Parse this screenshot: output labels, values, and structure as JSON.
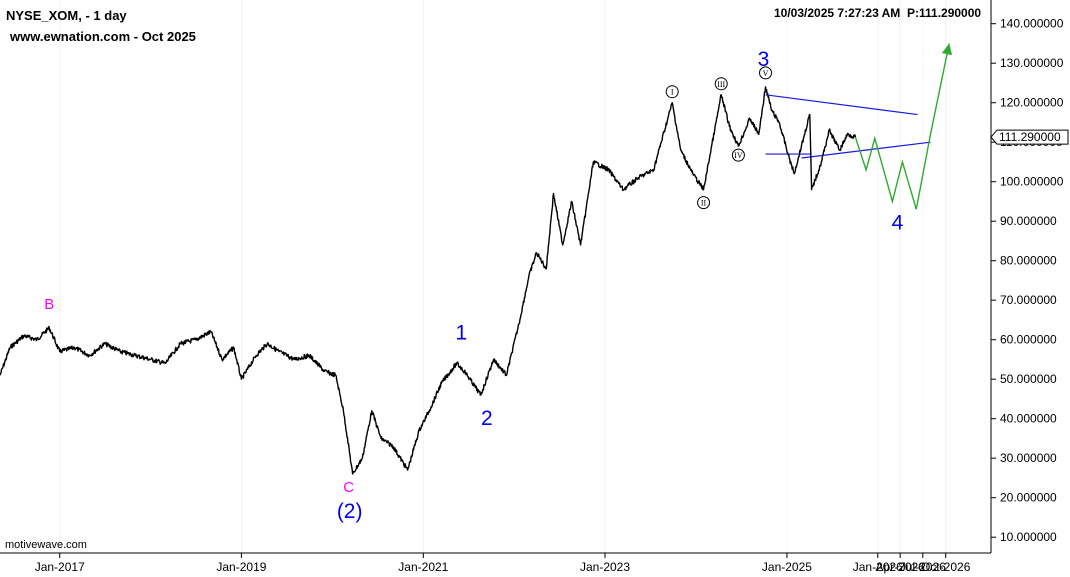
{
  "header": {
    "symbol": "NYSE_XOM, - 1 day",
    "site": "www.ewnation.com  - Oct 2025",
    "timestamp": "10/03/2025 7:27:23 AM",
    "price_readout": "P:111.290000"
  },
  "watermark": "motivewave.com",
  "colors": {
    "price": "#000000",
    "wave_blue": "#0000ee",
    "wave_magenta": "#ff00ff",
    "projection": "#2eaa2e",
    "triangle": "#1a1ae6"
  },
  "chart_data": {
    "type": "line",
    "title": "",
    "xlabel": "",
    "ylabel": "",
    "ylim": [
      6,
      146
    ],
    "xlim": [
      "2016-05-06",
      "2027-04-01"
    ],
    "y_ticks": [
      "10.000000",
      "20.000000",
      "30.000000",
      "40.000000",
      "50.000000",
      "60.000000",
      "70.000000",
      "80.000000",
      "90.000000",
      "100.000000",
      "110.000000",
      "120.000000",
      "130.000000",
      "140.000000"
    ],
    "x_ticks": [
      {
        "label": "Jan-2017",
        "date": "2017-01-01"
      },
      {
        "label": "Jan-2019",
        "date": "2019-01-01"
      },
      {
        "label": "Jan-2021",
        "date": "2021-01-01"
      },
      {
        "label": "Jan-2023",
        "date": "2023-01-01"
      },
      {
        "label": "Jan-2025",
        "date": "2025-01-01"
      },
      {
        "label": "Jan-2026",
        "date": "2026-01-01"
      },
      {
        "label": "Apr-2026",
        "date": "2026-04-01"
      },
      {
        "label": "Jul-2026",
        "date": "2026-07-01"
      },
      {
        "label": "Oct-2026",
        "date": "2026-10-01"
      }
    ],
    "current_price": "111.290000",
    "current_value": 111.29,
    "series": [
      {
        "points": [
          [
            "2016-05-06",
            51
          ],
          [
            "2016-06-15",
            58
          ],
          [
            "2016-08-10",
            61
          ],
          [
            "2016-10-01",
            60
          ],
          [
            "2016-11-20",
            63
          ],
          [
            "2017-01-01",
            57
          ],
          [
            "2017-03-01",
            58
          ],
          [
            "2017-05-01",
            56
          ],
          [
            "2017-07-01",
            59
          ],
          [
            "2017-09-01",
            57
          ],
          [
            "2017-11-01",
            56
          ],
          [
            "2018-01-01",
            55
          ],
          [
            "2018-03-01",
            54
          ],
          [
            "2018-05-01",
            59
          ],
          [
            "2018-07-01",
            60
          ],
          [
            "2018-09-01",
            62
          ],
          [
            "2018-10-15",
            55
          ],
          [
            "2018-12-01",
            58
          ],
          [
            "2019-01-01",
            50
          ],
          [
            "2019-03-01",
            56
          ],
          [
            "2019-04-15",
            59
          ],
          [
            "2019-06-01",
            57
          ],
          [
            "2019-08-01",
            55
          ],
          [
            "2019-10-01",
            56
          ],
          [
            "2019-12-01",
            52
          ],
          [
            "2020-01-15",
            51
          ],
          [
            "2020-02-15",
            42
          ],
          [
            "2020-03-23",
            26
          ],
          [
            "2020-05-01",
            30
          ],
          [
            "2020-06-08",
            42
          ],
          [
            "2020-07-15",
            35
          ],
          [
            "2020-09-01",
            33
          ],
          [
            "2020-10-30",
            27
          ],
          [
            "2020-12-15",
            37
          ],
          [
            "2021-02-01",
            43
          ],
          [
            "2021-03-15",
            49
          ],
          [
            "2021-05-15",
            54
          ],
          [
            "2021-06-15",
            52
          ],
          [
            "2021-08-20",
            46
          ],
          [
            "2021-10-10",
            55
          ],
          [
            "2021-12-01",
            51
          ],
          [
            "2022-01-20",
            64
          ],
          [
            "2022-03-01",
            76
          ],
          [
            "2022-04-01",
            82
          ],
          [
            "2022-05-10",
            78
          ],
          [
            "2022-06-08",
            97
          ],
          [
            "2022-07-15",
            84
          ],
          [
            "2022-08-20",
            95
          ],
          [
            "2022-09-25",
            84
          ],
          [
            "2022-11-15",
            105
          ],
          [
            "2023-01-15",
            103
          ],
          [
            "2023-03-15",
            98
          ],
          [
            "2023-05-15",
            101
          ],
          [
            "2023-07-15",
            103
          ],
          [
            "2023-09-28",
            120
          ],
          [
            "2023-11-01",
            108
          ],
          [
            "2023-12-20",
            102
          ],
          [
            "2024-02-01",
            98
          ],
          [
            "2024-04-12",
            122
          ],
          [
            "2024-05-15",
            114
          ],
          [
            "2024-06-20",
            109
          ],
          [
            "2024-08-05",
            116
          ],
          [
            "2024-09-10",
            112
          ],
          [
            "2024-10-07",
            124
          ],
          [
            "2024-11-01",
            118
          ],
          [
            "2024-12-01",
            115
          ],
          [
            "2025-01-10",
            106
          ],
          [
            "2025-01-30",
            102
          ],
          [
            "2025-02-28",
            109
          ],
          [
            "2025-04-03",
            117
          ],
          [
            "2025-04-10",
            98
          ],
          [
            "2025-05-15",
            104
          ],
          [
            "2025-06-20",
            113
          ],
          [
            "2025-08-01",
            108
          ],
          [
            "2025-09-01",
            112
          ],
          [
            "2025-10-03",
            111.29
          ]
        ]
      }
    ],
    "projection": [
      [
        "2025-10-03",
        111.29
      ],
      [
        "2025-11-15",
        103
      ],
      [
        "2025-12-20",
        111
      ],
      [
        "2026-03-01",
        95
      ],
      [
        "2026-04-10",
        105
      ],
      [
        "2026-06-05",
        93
      ],
      [
        "2026-08-01",
        112
      ],
      [
        "2026-10-15",
        135
      ]
    ],
    "triangle_lines": [
      [
        [
          "2024-10-07",
          122
        ],
        [
          "2026-06-10",
          117
        ]
      ],
      [
        [
          "2025-03-01",
          106
        ],
        [
          "2026-08-01",
          110
        ]
      ],
      [
        [
          "2024-10-07",
          107
        ],
        [
          "2025-04-10",
          107
        ]
      ]
    ],
    "wave_labels": [
      {
        "text": "B",
        "x": "2016-11-20",
        "y": 63,
        "color": "magenta",
        "size": "small"
      },
      {
        "text": "C",
        "x": "2020-03-23",
        "y": 26,
        "color": "magenta",
        "size": "small"
      },
      {
        "text": "(2)",
        "x": "2020-03-23",
        "y": 26,
        "color": "blue",
        "size": "large"
      },
      {
        "text": "1",
        "x": "2021-06-15",
        "y": 55,
        "color": "blue",
        "size": "large"
      },
      {
        "text": "2",
        "x": "2021-08-20",
        "y": 46,
        "color": "blue",
        "size": "large"
      },
      {
        "text": "3",
        "x": "2024-10-07",
        "y": 124,
        "color": "blue",
        "size": "large"
      },
      {
        "text": "4",
        "x": "2026-03-01",
        "y": 95,
        "color": "blue",
        "size": "large"
      }
    ],
    "roman_labels": [
      {
        "text": "I",
        "x": "2023-09-28",
        "y": 120
      },
      {
        "text": "II",
        "x": "2024-02-01",
        "y": 98
      },
      {
        "text": "III",
        "x": "2024-04-12",
        "y": 122
      },
      {
        "text": "IV",
        "x": "2024-06-20",
        "y": 109
      },
      {
        "text": "V",
        "x": "2024-10-07",
        "y": 124
      }
    ]
  }
}
